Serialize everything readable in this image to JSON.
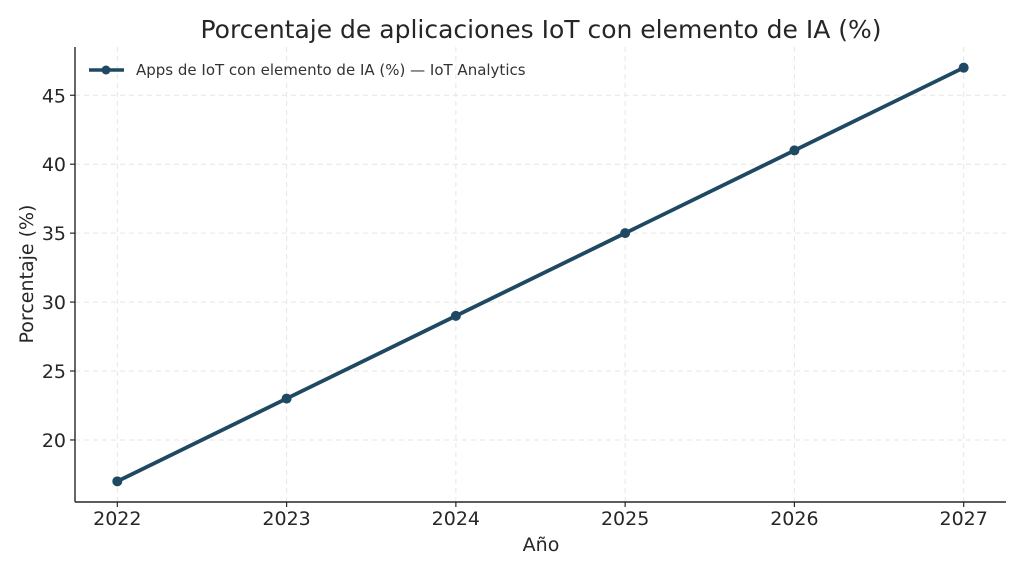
{
  "chart_data": {
    "type": "line",
    "title": "Porcentaje de aplicaciones IoT con elemento de IA (%)",
    "xlabel": "Año",
    "ylabel": "Porcentaje (%)",
    "x": [
      "2022",
      "2023",
      "2024",
      "2025",
      "2026",
      "2027"
    ],
    "series": [
      {
        "name": "Apps de IoT con elemento de IA (%) — IoT Analytics",
        "values": [
          17,
          23,
          29,
          35,
          41,
          47
        ],
        "color": "#1f4863"
      }
    ],
    "yticks": [
      20,
      25,
      30,
      35,
      40,
      45
    ],
    "ylim": [
      15.5,
      48.5
    ],
    "xlim": [
      2021.75,
      2027.25
    ],
    "grid": true,
    "legend_position": "top-left"
  }
}
